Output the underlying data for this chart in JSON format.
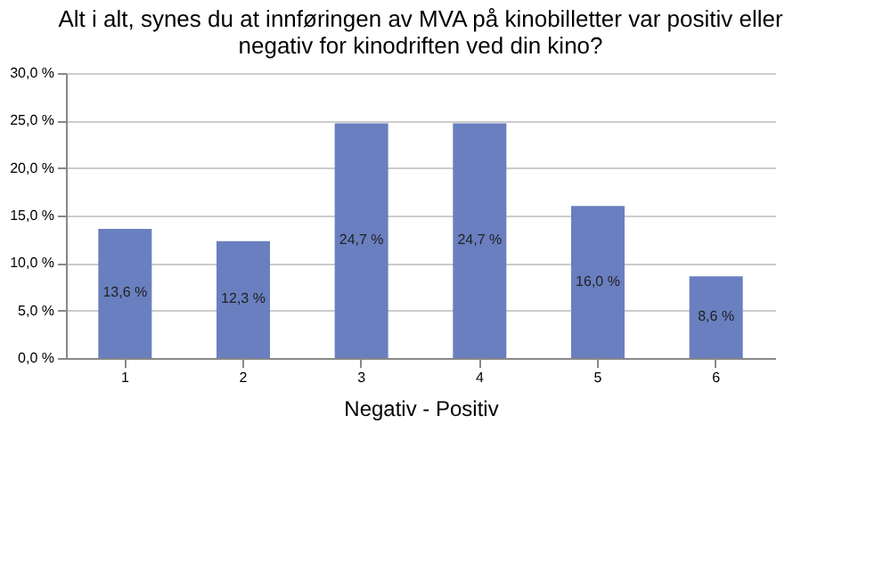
{
  "chart_data": {
    "type": "bar",
    "title": [
      "Alt i alt, synes du at innføringen av MVA på kinobilletter var positiv eller",
      "negativ for kinodriften ved din kino?"
    ],
    "xlabel": "Negativ - Positiv",
    "categories": [
      "1",
      "2",
      "3",
      "4",
      "5",
      "6"
    ],
    "values": [
      13.6,
      12.3,
      24.7,
      24.7,
      16.0,
      8.6
    ],
    "value_labels": [
      "13,6 %",
      "12,3 %",
      "24,7 %",
      "24,7 %",
      "16,0 %",
      "8,6 %"
    ],
    "color": "#6a7fc0",
    "ylim": [
      0,
      30
    ],
    "yticks": [
      {
        "value": 0,
        "label": "0,0 %"
      },
      {
        "value": 5,
        "label": "5,0 %"
      },
      {
        "value": 10,
        "label": "10,0 %"
      },
      {
        "value": 15,
        "label": "15,0 %"
      },
      {
        "value": 20,
        "label": "20,0 %"
      },
      {
        "value": 25,
        "label": "25,0 %"
      },
      {
        "value": 30,
        "label": "30,0 %"
      }
    ],
    "grid": "y"
  }
}
